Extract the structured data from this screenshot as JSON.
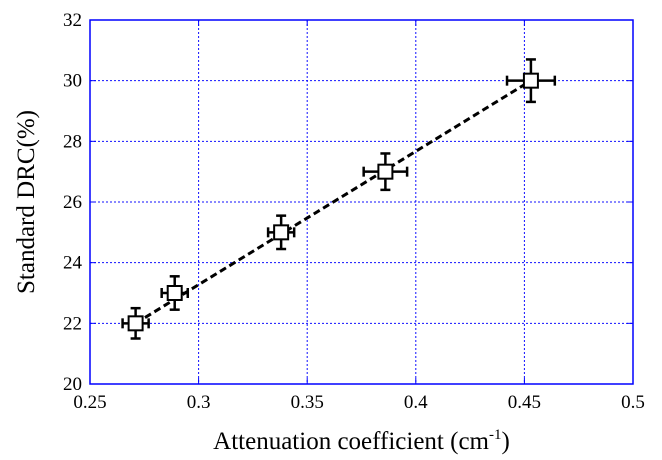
{
  "chart_data": {
    "type": "scatter",
    "title": "",
    "xlabel": "Attenuation coefficient (cm",
    "xlabel_superscript": "-1",
    "xlabel_suffix": ")",
    "ylabel": "Standard DRC(%)",
    "xlim": [
      0.25,
      0.5
    ],
    "ylim": [
      20,
      32
    ],
    "grid": true,
    "x_ticks": [
      "0.25",
      "0.3",
      "0.35",
      "0.4",
      "0.45",
      "0.5"
    ],
    "y_ticks": [
      "20",
      "22",
      "24",
      "26",
      "28",
      "30",
      "32"
    ],
    "series": [
      {
        "marker": "open-square",
        "x": [
          0.271,
          0.289,
          0.338,
          0.386,
          0.453
        ],
        "y": [
          22.0,
          23.0,
          25.0,
          27.0,
          30.0
        ],
        "xerr": [
          0.006,
          0.006,
          0.006,
          0.01,
          0.011
        ],
        "yerr": [
          0.5,
          0.55,
          0.55,
          0.6,
          0.7
        ]
      }
    ],
    "fit_line": {
      "style": "dashed",
      "x": [
        0.271,
        0.453
      ],
      "y": [
        22.0,
        30.0
      ]
    },
    "colors": {
      "axes": "#0000ff",
      "grid": "#1010ff",
      "markers": "#000000"
    }
  }
}
